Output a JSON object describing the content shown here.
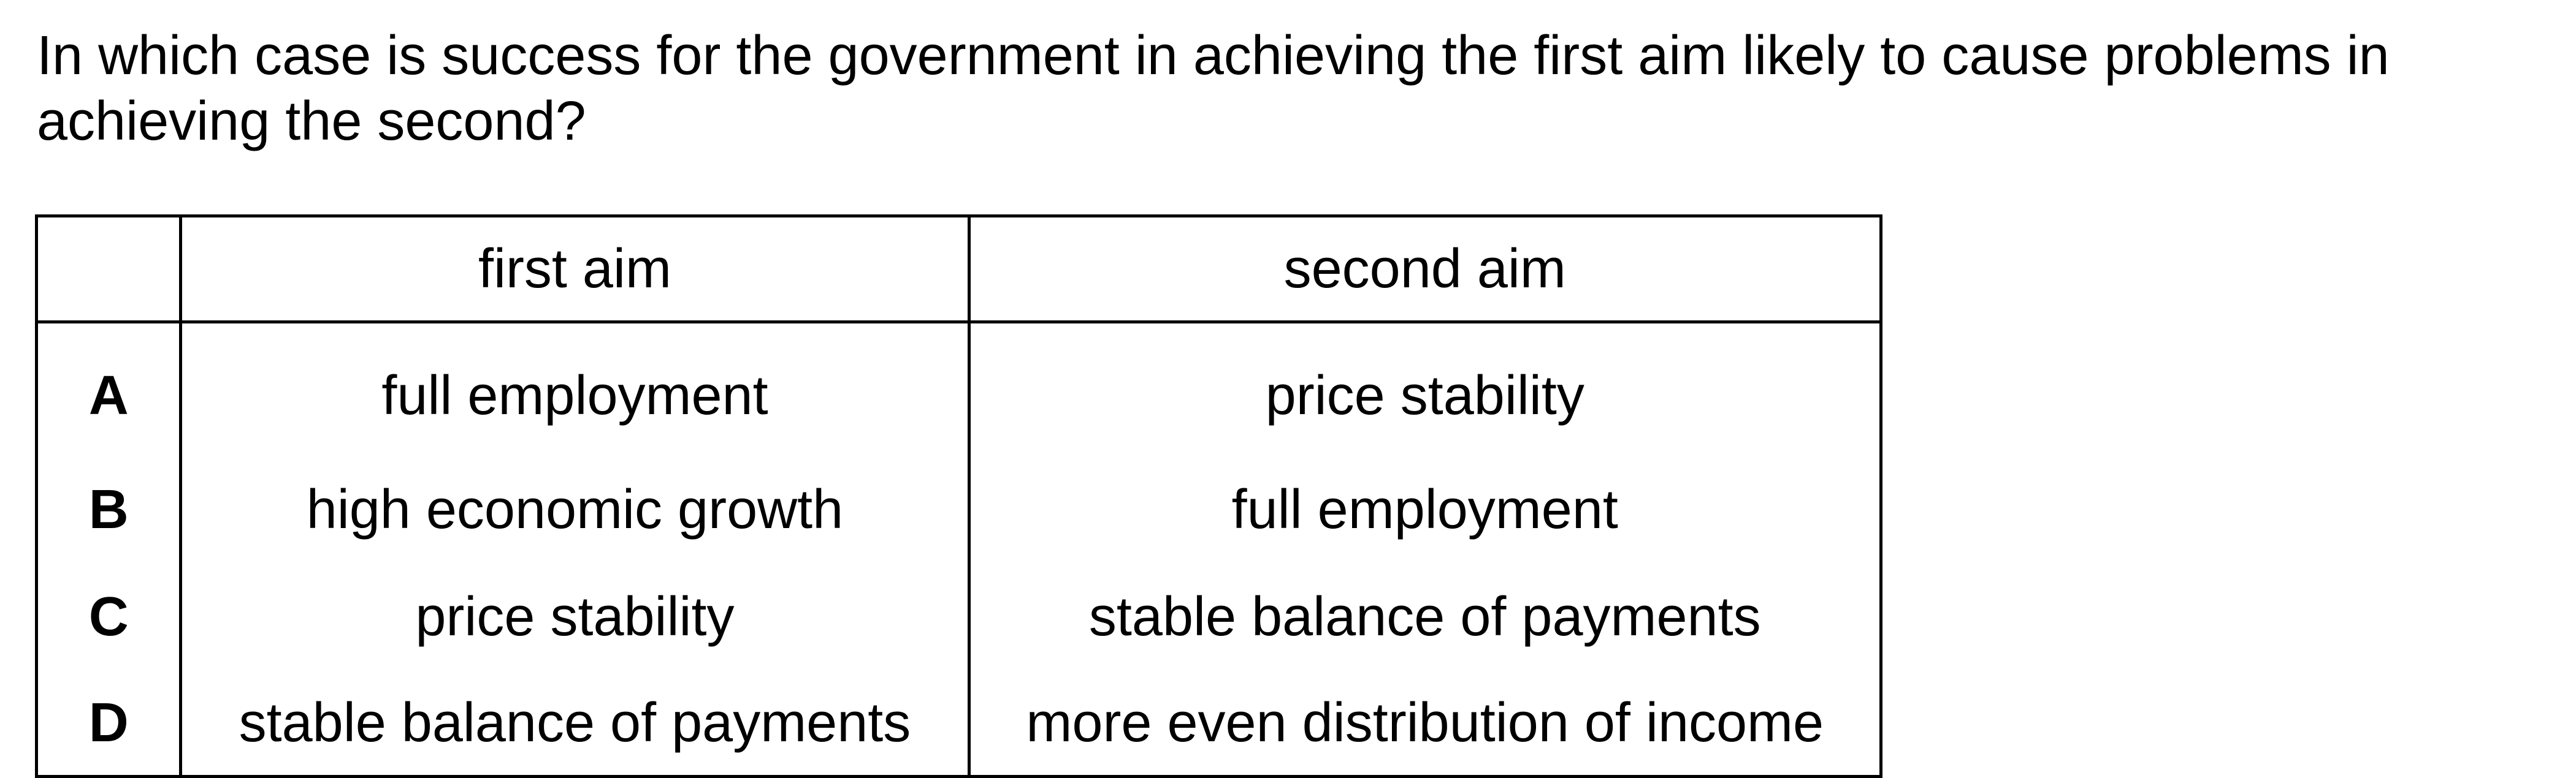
{
  "question": {
    "text": "In which case is success for the government in achieving the first aim likely to cause problems in achieving the second?"
  },
  "table": {
    "headers": {
      "option": "",
      "first_aim": "first aim",
      "second_aim": "second aim"
    },
    "rows": [
      {
        "option": "A",
        "first_aim": "full employment",
        "second_aim": "price stability"
      },
      {
        "option": "B",
        "first_aim": "high economic growth",
        "second_aim": "full employment"
      },
      {
        "option": "C",
        "first_aim": "price stability",
        "second_aim": "stable balance of payments"
      },
      {
        "option": "D",
        "first_aim": "stable balance of payments",
        "second_aim": "more even distribution of income"
      }
    ]
  }
}
